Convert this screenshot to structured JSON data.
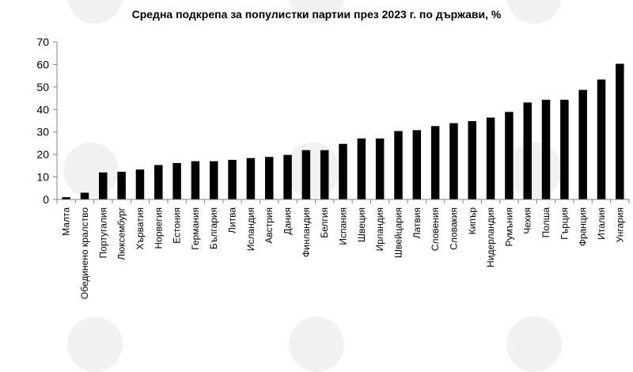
{
  "chart_data": {
    "type": "bar",
    "title": "Средна подкрепа  за популистки партии през 2023 г. по държави, %",
    "xlabel": "",
    "ylabel": "",
    "ylim": [
      0,
      70
    ],
    "yticks": [
      0,
      10,
      20,
      30,
      40,
      50,
      60,
      70
    ],
    "grid": false,
    "legend": "none",
    "bar_color": "#000000",
    "categories": [
      "Малта",
      "Обединено кралство",
      "Португалия",
      "Люксембург",
      "Хърватия",
      "Норвегия",
      "Естония",
      "Германия",
      "България",
      "Литва",
      "Исландия",
      "Австрия",
      "Дания",
      "Финландия",
      "Белгия",
      "Испания",
      "Швеция",
      "Ирландия",
      "Швейцария",
      "Латвия",
      "Словения",
      "Словакия",
      "Кипър",
      "Нидерландия",
      "Румъния",
      "Чехия",
      "Полша",
      "Гърция",
      "Франция",
      "Италия",
      "Унгария"
    ],
    "values": [
      1,
      3,
      12,
      12.3,
      13.3,
      15.3,
      16.2,
      17,
      17,
      17.6,
      18.4,
      18.9,
      19.8,
      21.9,
      21.9,
      24.7,
      27.1,
      27.1,
      30.4,
      30.8,
      32.6,
      33.9,
      34.8,
      36.4,
      38.9,
      43.1,
      44.3,
      44.3,
      48.7,
      53.3,
      60.3
    ]
  }
}
